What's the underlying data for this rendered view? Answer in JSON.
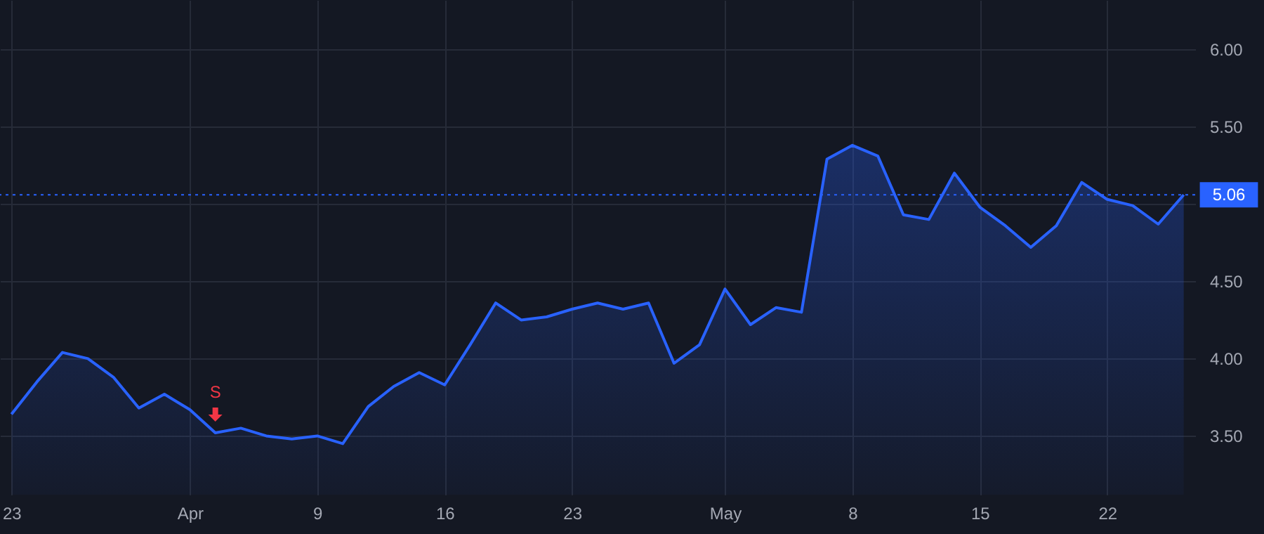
{
  "chart_data": {
    "type": "area",
    "categories": [
      "23",
      null,
      null,
      null,
      null,
      null,
      null,
      "Apr",
      null,
      null,
      null,
      null,
      "9",
      null,
      null,
      null,
      null,
      "16",
      null,
      null,
      null,
      null,
      "23",
      null,
      null,
      null,
      null,
      null,
      "May",
      null,
      null,
      null,
      null,
      "8",
      null,
      null,
      null,
      null,
      "15",
      null,
      null,
      null,
      null,
      "22",
      null,
      null,
      null
    ],
    "series": [
      {
        "color": "#2962ff",
        "values": [
          3.64,
          3.85,
          4.04,
          4.0,
          3.88,
          3.68,
          3.77,
          3.67,
          3.52,
          3.55,
          3.5,
          3.48,
          3.5,
          3.45,
          3.69,
          3.82,
          3.91,
          3.83,
          4.09,
          4.36,
          4.25,
          4.27,
          4.32,
          4.36,
          4.32,
          4.36,
          3.97,
          4.09,
          4.45,
          4.22,
          4.33,
          4.3,
          5.29,
          5.38,
          5.31,
          4.93,
          4.9,
          5.2,
          4.98,
          4.86,
          4.72,
          4.86,
          5.14,
          5.03,
          4.99,
          4.87,
          5.06
        ]
      }
    ],
    "ylim": [
      3.12,
      6.32
    ],
    "yticks": [
      {
        "value": 3.5,
        "label": "3.50"
      },
      {
        "value": 4,
        "label": "4.00"
      },
      {
        "value": 4.5,
        "label": "4.50"
      },
      {
        "value": 5,
        "label": null
      },
      {
        "value": 5.5,
        "label": "5.50"
      },
      {
        "value": 6,
        "label": "6.00"
      }
    ],
    "grid": true,
    "ref_lines": [
      {
        "axis": "y",
        "value": 5.06,
        "label": "5.06",
        "color": "#2962ff",
        "line_style": "dotted"
      }
    ],
    "annotations": [
      "S"
    ]
  }
}
